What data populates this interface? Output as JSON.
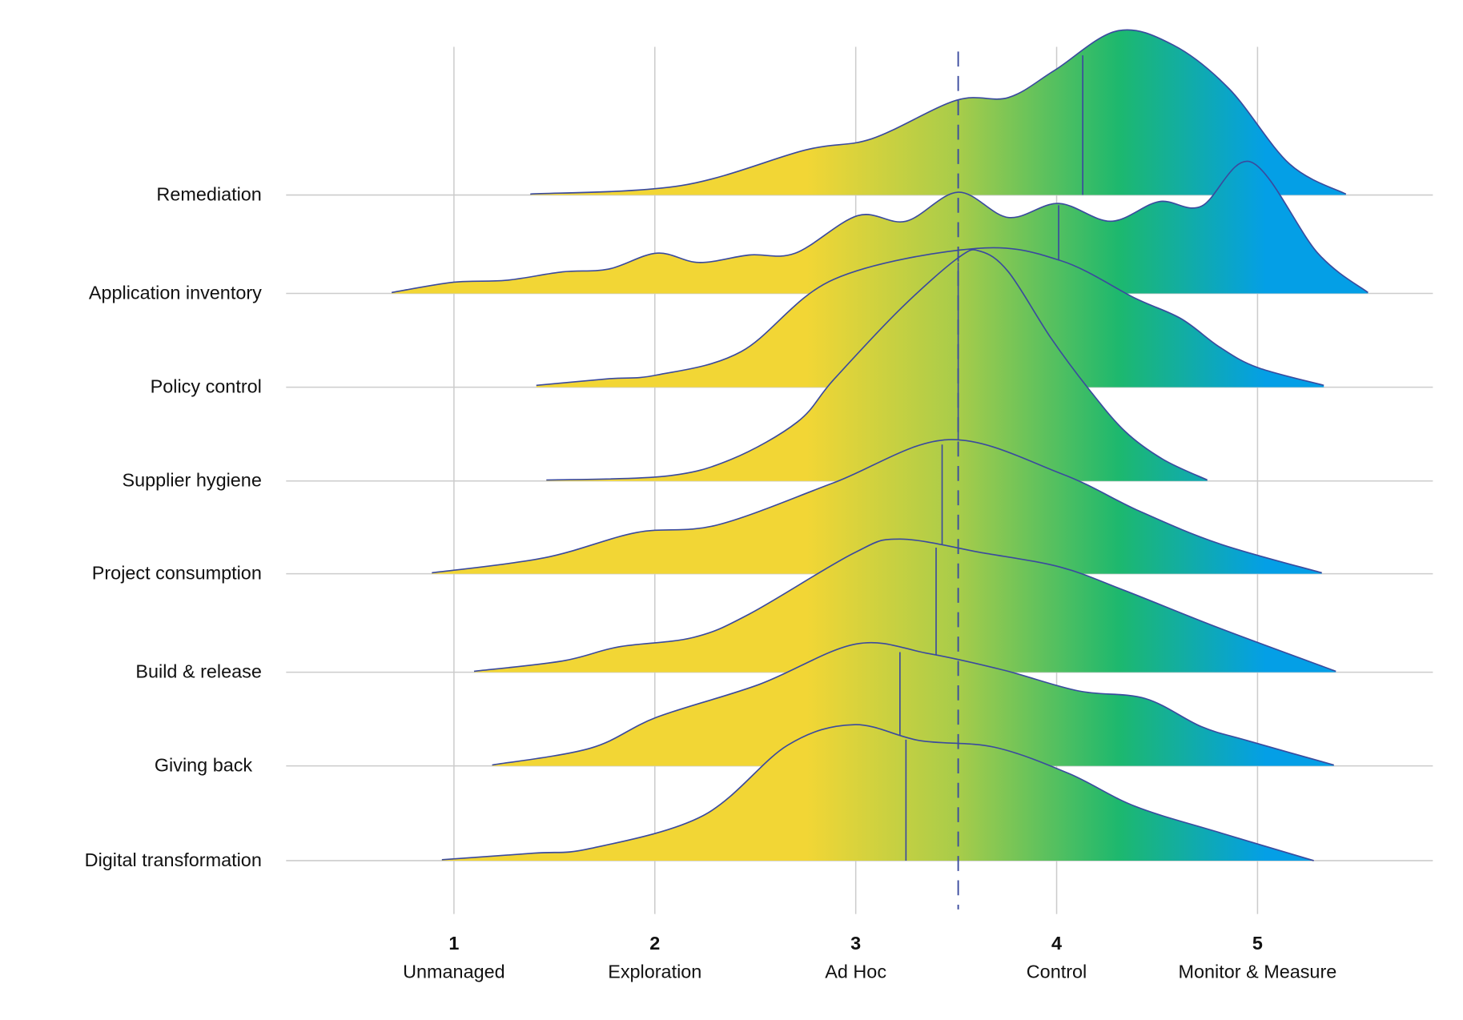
{
  "chart_data": {
    "type": "ridgeline",
    "title": "",
    "xlabel": "",
    "ylabel": "",
    "xlim": [
      0.5,
      5.9
    ],
    "grid": true,
    "x_ticks": [
      {
        "value": 1,
        "label": "1",
        "sublabel": "Unmanaged"
      },
      {
        "value": 2,
        "label": "2",
        "sublabel": "Exploration"
      },
      {
        "value": 3,
        "label": "3",
        "sublabel": "Ad Hoc"
      },
      {
        "value": 4,
        "label": "4",
        "sublabel": "Control"
      },
      {
        "value": 5,
        "label": "5",
        "sublabel": "Monitor & Measure"
      }
    ],
    "reference_line": {
      "x": 3.51,
      "style": "dashed",
      "color": "#3a4a9e"
    },
    "colors": {
      "low": "#f2d635",
      "mid": "#a8cc4a",
      "high": "#1db86e",
      "top": "#049fe6",
      "outline": "#3a4a9e",
      "grid": "#cccccc"
    },
    "series": [
      {
        "name": "Remediation",
        "median": 4.13,
        "x": [
          1.38,
          2.13,
          2.75,
          3.08,
          3.5,
          3.76,
          3.99,
          4.3,
          4.58,
          4.86,
          5.16,
          5.44
        ],
        "density": [
          0.01,
          0.1,
          0.48,
          0.6,
          1.01,
          1.04,
          1.33,
          1.75,
          1.6,
          1.13,
          0.33,
          0.01
        ]
      },
      {
        "name": "Application inventory",
        "median": 4.01,
        "x": [
          0.69,
          1.0,
          1.26,
          1.54,
          1.77,
          2.01,
          2.22,
          2.47,
          2.7,
          3.01,
          3.25,
          3.51,
          3.76,
          4.01,
          4.27,
          4.51,
          4.72,
          4.97,
          5.3,
          5.55
        ],
        "density": [
          0.01,
          0.12,
          0.14,
          0.23,
          0.26,
          0.43,
          0.33,
          0.41,
          0.43,
          0.83,
          0.77,
          1.08,
          0.81,
          0.96,
          0.77,
          0.98,
          0.93,
          1.4,
          0.43,
          0.01
        ]
      },
      {
        "name": "Policy control",
        "median": 3.51,
        "x": [
          1.41,
          1.77,
          2.01,
          2.43,
          2.89,
          3.6,
          4.02,
          4.39,
          4.62,
          4.81,
          5.0,
          5.33
        ],
        "density": [
          0.02,
          0.09,
          0.13,
          0.38,
          1.15,
          1.48,
          1.35,
          0.95,
          0.73,
          0.43,
          0.21,
          0.02
        ]
      },
      {
        "name": "Supplier hygiene",
        "median": 3.51,
        "x": [
          1.46,
          2.05,
          2.38,
          2.71,
          2.89,
          3.22,
          3.51,
          3.62,
          3.76,
          3.97,
          4.16,
          4.34,
          4.53,
          4.75
        ],
        "density": [
          0.01,
          0.05,
          0.23,
          0.63,
          1.08,
          1.83,
          2.38,
          2.45,
          2.23,
          1.53,
          0.98,
          0.53,
          0.23,
          0.01
        ]
      },
      {
        "name": "Project consumption",
        "median": 3.43,
        "x": [
          0.89,
          1.45,
          1.91,
          2.31,
          2.89,
          3.46,
          4.02,
          4.41,
          4.81,
          5.32
        ],
        "density": [
          0.01,
          0.17,
          0.44,
          0.52,
          0.97,
          1.43,
          1.07,
          0.67,
          0.32,
          0.01
        ]
      },
      {
        "name": "Build & release",
        "median": 3.4,
        "x": [
          1.1,
          1.54,
          1.82,
          2.19,
          2.47,
          2.99,
          3.22,
          3.64,
          4.02,
          4.34,
          4.81,
          5.39
        ],
        "density": [
          0.01,
          0.12,
          0.27,
          0.37,
          0.62,
          1.27,
          1.42,
          1.27,
          1.12,
          0.87,
          0.47,
          0.01
        ]
      },
      {
        "name": "Giving back",
        "median": 3.22,
        "x": [
          1.19,
          1.68,
          2.01,
          2.52,
          3.0,
          3.36,
          3.74,
          4.11,
          4.44,
          4.72,
          4.95,
          5.38
        ],
        "density": [
          0.01,
          0.19,
          0.52,
          0.87,
          1.3,
          1.2,
          1.02,
          0.8,
          0.72,
          0.42,
          0.27,
          0.01
        ]
      },
      {
        "name": "Digital transformation",
        "median": 3.25,
        "x": [
          0.94,
          1.4,
          1.68,
          2.24,
          2.66,
          2.99,
          3.32,
          3.69,
          4.06,
          4.39,
          4.81,
          5.28
        ],
        "density": [
          0.01,
          0.08,
          0.13,
          0.48,
          1.23,
          1.45,
          1.28,
          1.21,
          0.93,
          0.58,
          0.3,
          0.0
        ]
      }
    ]
  }
}
